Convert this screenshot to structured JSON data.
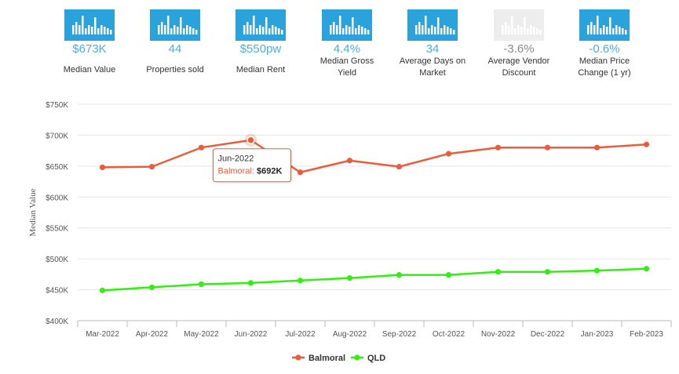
{
  "stats": [
    {
      "value": "$673K",
      "label": "Median Value",
      "enabled": true
    },
    {
      "value": "44",
      "label": "Properties sold",
      "enabled": true
    },
    {
      "value": "$550pw",
      "label": "Median Rent",
      "enabled": true
    },
    {
      "value": "4.4%",
      "label": "Median Gross Yield",
      "label_lines": [
        "Median Gross",
        "Yield"
      ],
      "enabled": true
    },
    {
      "value": "34",
      "label": "Average Days on Market",
      "label_lines": [
        "Average Days on",
        "Market"
      ],
      "enabled": true
    },
    {
      "value": "-3.6%",
      "label": "Average Vendor Discount",
      "label_lines": [
        "Average Vendor",
        "Discount"
      ],
      "enabled": false
    },
    {
      "value": "-0.6%",
      "label": "Median Price Change (1 yr)",
      "label_lines": [
        "Median Price",
        "Change (1 yr)"
      ],
      "enabled": true
    }
  ],
  "colors": {
    "accent": "#2aa2dc",
    "balmoral": "#ea5d3c",
    "qld": "#33ee11"
  },
  "chart_data": {
    "type": "line",
    "title": "",
    "xlabel": "",
    "ylabel": "Median Value",
    "categories": [
      "Mar-2022",
      "Apr-2022",
      "May-2022",
      "Jun-2022",
      "Jul-2022",
      "Aug-2022",
      "Sep-2022",
      "Oct-2022",
      "Nov-2022",
      "Dec-2022",
      "Jan-2023",
      "Feb-2023"
    ],
    "series": [
      {
        "name": "Balmoral",
        "color": "#ea5d3c",
        "values": [
          648,
          649,
          680,
          692,
          640,
          659,
          649,
          670,
          680,
          680,
          680,
          685
        ]
      },
      {
        "name": "QLD",
        "color": "#33ee11",
        "values": [
          449,
          454,
          459,
          461,
          465,
          469,
          474,
          474,
          479,
          479,
          481,
          484
        ]
      }
    ],
    "ylim": [
      400,
      750
    ],
    "yticks": [
      400,
      450,
      500,
      550,
      600,
      650,
      700,
      750
    ],
    "ytick_labels": [
      "$400K",
      "$450K",
      "$500K",
      "$550K",
      "$600K",
      "$650K",
      "$700K",
      "$750K"
    ],
    "grid": "horizontal",
    "legend": "bottom-center",
    "tooltip": {
      "category": "Jun-2022",
      "series": "Balmoral",
      "series_label": "Balmoral:",
      "value": "$692K"
    }
  }
}
